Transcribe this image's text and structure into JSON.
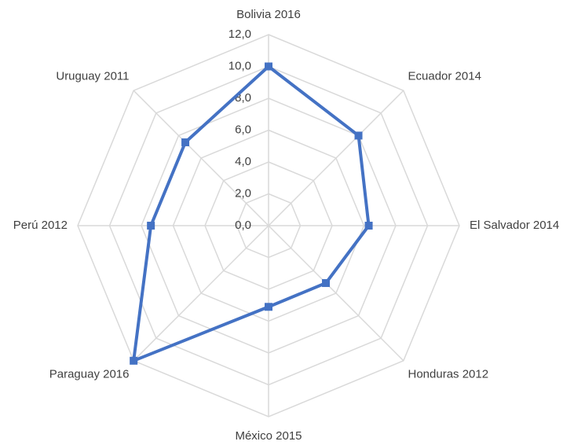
{
  "chart_data": {
    "type": "radar",
    "categories": [
      "Bolivia 2016",
      "Ecuador 2014",
      "El Salvador 2014",
      "Honduras 2012",
      "México 2015",
      "Paraguay 2016",
      "Perú 2012",
      "Uruguay 2011"
    ],
    "values": [
      10.0,
      8.0,
      6.3,
      5.1,
      5.1,
      12.0,
      7.4,
      7.4
    ],
    "color": "#4472c4",
    "ylim": [
      0,
      12
    ],
    "yticks": [
      {
        "value": 0,
        "label": "0,0"
      },
      {
        "value": 2,
        "label": "2,0"
      },
      {
        "value": 4,
        "label": "4,0"
      },
      {
        "value": 6,
        "label": "6,0"
      },
      {
        "value": 8,
        "label": "8,0"
      },
      {
        "value": 10,
        "label": "10,0"
      },
      {
        "value": 12,
        "label": "12,0"
      }
    ],
    "grid": true
  }
}
